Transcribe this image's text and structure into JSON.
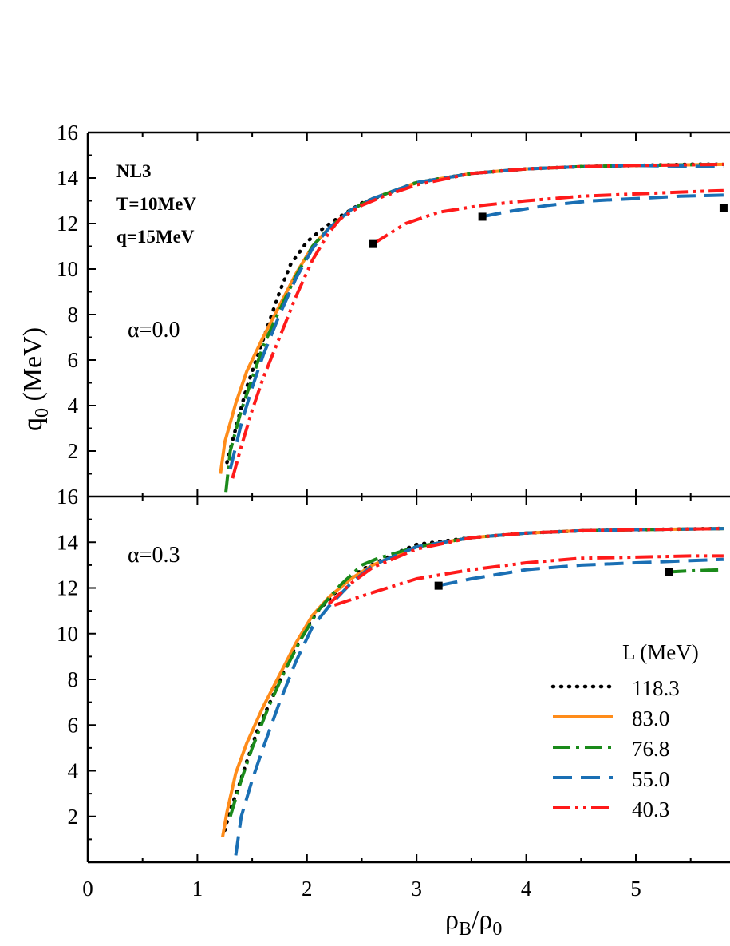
{
  "chart_data": {
    "type": "line",
    "xlabel_main": "ρ",
    "xlabel_sub1": "B",
    "xlabel_mid": "/ρ",
    "xlabel_sub2": "0",
    "ylabel_main": "q",
    "ylabel_sub": "0",
    "ylabel_unit": " (MeV)",
    "xlim": [
      0,
      5.8
    ],
    "x_ticks": [
      "0",
      "1",
      "2",
      "3",
      "4",
      "5"
    ],
    "annotations": [
      "NL3",
      "T=10MeV",
      "q=15MeV"
    ],
    "legend_title": "L (MeV)",
    "legend_position": "bottom-right",
    "series_styles": [
      {
        "name": "118.3",
        "color": "#000000",
        "dash": "dots"
      },
      {
        "name": "83.0",
        "color": "#ff8c1a",
        "dash": "solid"
      },
      {
        "name": "76.8",
        "color": "#1a8a1a",
        "dash": "dashdot"
      },
      {
        "name": "55.0",
        "color": "#1a6fb4",
        "dash": "dashed"
      },
      {
        "name": "40.3",
        "color": "#ff1a1a",
        "dash": "dashdotdot"
      }
    ],
    "panels": [
      {
        "label": "α=0.0",
        "ylim": [
          0,
          16
        ],
        "y_ticks": [
          "2",
          "4",
          "6",
          "8",
          "10",
          "12",
          "14",
          "16"
        ],
        "series": [
          {
            "name": "118.3",
            "points": [
              [
                1.27,
                1.5
              ],
              [
                1.35,
                3
              ],
              [
                1.45,
                4.8
              ],
              [
                1.55,
                6.2
              ],
              [
                1.65,
                7.6
              ],
              [
                1.75,
                9.0
              ],
              [
                1.85,
                10.2
              ],
              [
                2.0,
                11.2
              ],
              [
                2.15,
                11.8
              ],
              [
                2.3,
                12.3
              ],
              [
                2.5,
                12.9
              ],
              [
                3,
                13.8
              ],
              [
                3.5,
                14.2
              ],
              [
                4,
                14.4
              ],
              [
                4.5,
                14.5
              ],
              [
                5,
                14.55
              ],
              [
                5.5,
                14.6
              ],
              [
                5.8,
                14.6
              ]
            ]
          },
          {
            "name": "83.0",
            "points": [
              [
                1.21,
                1.0
              ],
              [
                1.25,
                2.4
              ],
              [
                1.35,
                4.1
              ],
              [
                1.45,
                5.5
              ],
              [
                1.6,
                7.0
              ],
              [
                1.75,
                8.4
              ],
              [
                1.9,
                9.8
              ],
              [
                2.05,
                11.0
              ],
              [
                2.2,
                11.8
              ],
              [
                2.4,
                12.6
              ],
              [
                2.6,
                13.1
              ],
              [
                3,
                13.8
              ],
              [
                3.5,
                14.2
              ],
              [
                4,
                14.4
              ],
              [
                4.5,
                14.5
              ],
              [
                5,
                14.55
              ],
              [
                5.8,
                14.6
              ]
            ]
          },
          {
            "name": "76.8",
            "points": [
              [
                1.26,
                0.2
              ],
              [
                1.3,
                2.0
              ],
              [
                1.4,
                3.8
              ],
              [
                1.5,
                5.2
              ],
              [
                1.6,
                6.6
              ],
              [
                1.75,
                8.2
              ],
              [
                1.9,
                9.7
              ],
              [
                2.05,
                11.0
              ],
              [
                2.2,
                11.8
              ],
              [
                2.4,
                12.6
              ],
              [
                2.6,
                13.1
              ],
              [
                3,
                13.8
              ],
              [
                3.5,
                14.2
              ],
              [
                4,
                14.4
              ],
              [
                4.5,
                14.5
              ],
              [
                5,
                14.55
              ],
              [
                5.8,
                14.6
              ]
            ]
          },
          {
            "name": "55.0",
            "points": [
              [
                1.3,
                1.2
              ],
              [
                1.4,
                3.2
              ],
              [
                1.5,
                4.8
              ],
              [
                1.6,
                6.2
              ],
              [
                1.75,
                8.0
              ],
              [
                1.9,
                9.6
              ],
              [
                2.05,
                10.9
              ],
              [
                2.2,
                11.8
              ],
              [
                2.4,
                12.6
              ],
              [
                2.6,
                13.1
              ],
              [
                3,
                13.8
              ],
              [
                3.5,
                14.2
              ],
              [
                4,
                14.4
              ],
              [
                4.5,
                14.5
              ],
              [
                5,
                14.55
              ],
              [
                5.8,
                14.5
              ]
            ]
          },
          {
            "name": "40.3",
            "points": [
              [
                1.32,
                0.8
              ],
              [
                1.4,
                2.2
              ],
              [
                1.5,
                3.8
              ],
              [
                1.6,
                5.2
              ],
              [
                1.75,
                7.0
              ],
              [
                1.9,
                8.8
              ],
              [
                2.05,
                10.4
              ],
              [
                2.2,
                11.6
              ],
              [
                2.3,
                12.2
              ],
              [
                2.5,
                12.8
              ],
              [
                2.7,
                13.2
              ],
              [
                3,
                13.7
              ],
              [
                3.5,
                14.2
              ],
              [
                4,
                14.4
              ],
              [
                4.5,
                14.5
              ],
              [
                5,
                14.55
              ],
              [
                5.8,
                14.6
              ]
            ]
          },
          {
            "name": "55.0",
            "points": [
              [
                3.6,
                12.3
              ],
              [
                3.8,
                12.5
              ],
              [
                4.2,
                12.8
              ],
              [
                4.6,
                13.0
              ],
              [
                5,
                13.1
              ],
              [
                5.4,
                13.2
              ],
              [
                5.8,
                13.25
              ]
            ]
          },
          {
            "name": "40.3",
            "points": [
              [
                2.6,
                11.1
              ],
              [
                2.9,
                12.0
              ],
              [
                3.2,
                12.5
              ],
              [
                3.6,
                12.8
              ],
              [
                4,
                13.0
              ],
              [
                4.5,
                13.2
              ],
              [
                5,
                13.3
              ],
              [
                5.5,
                13.4
              ],
              [
                5.8,
                13.45
              ]
            ]
          }
        ],
        "markers": [
          [
            2.6,
            11.1
          ],
          [
            3.6,
            12.3
          ],
          [
            5.8,
            12.7
          ]
        ]
      },
      {
        "label": "α=0.3",
        "ylim": [
          0,
          16
        ],
        "y_ticks": [
          "2",
          "4",
          "6",
          "8",
          "10",
          "12",
          "14",
          "16"
        ],
        "series": [
          {
            "name": "118.3",
            "points": [
              [
                1.25,
                1.4
              ],
              [
                1.3,
                2.3
              ],
              [
                1.37,
                3.2
              ],
              [
                1.45,
                4.4
              ],
              [
                1.55,
                5.8
              ],
              [
                1.7,
                7.4
              ],
              [
                1.85,
                9.0
              ],
              [
                2.0,
                10.3
              ],
              [
                2.1,
                11.0
              ],
              [
                2.3,
                12.0
              ],
              [
                2.5,
                12.8
              ],
              [
                2.8,
                13.5
              ],
              [
                3,
                13.9
              ],
              [
                3.5,
                14.2
              ],
              [
                4,
                14.4
              ],
              [
                4.5,
                14.5
              ],
              [
                5,
                14.55
              ],
              [
                5.8,
                14.6
              ]
            ]
          },
          {
            "name": "83.0",
            "points": [
              [
                1.23,
                1.1
              ],
              [
                1.27,
                2.2
              ],
              [
                1.35,
                3.9
              ],
              [
                1.45,
                5.2
              ],
              [
                1.6,
                6.8
              ],
              [
                1.75,
                8.2
              ],
              [
                1.9,
                9.6
              ],
              [
                2.05,
                10.8
              ],
              [
                2.2,
                11.6
              ],
              [
                2.4,
                12.4
              ],
              [
                2.6,
                13.0
              ],
              [
                3,
                13.8
              ],
              [
                3.5,
                14.2
              ],
              [
                4,
                14.4
              ],
              [
                4.5,
                14.5
              ],
              [
                5,
                14.55
              ],
              [
                5.8,
                14.6
              ]
            ]
          },
          {
            "name": "76.8",
            "points": [
              [
                1.3,
                2.0
              ],
              [
                1.4,
                3.6
              ],
              [
                1.5,
                5.0
              ],
              [
                1.65,
                6.8
              ],
              [
                1.8,
                8.4
              ],
              [
                1.95,
                9.8
              ],
              [
                2.1,
                11.0
              ],
              [
                2.3,
                12.1
              ],
              [
                2.5,
                13.0
              ],
              [
                2.65,
                13.3
              ],
              [
                3,
                13.8
              ],
              [
                3.5,
                14.2
              ],
              [
                4,
                14.4
              ],
              [
                4.5,
                14.5
              ],
              [
                5,
                14.55
              ],
              [
                5.8,
                14.6
              ]
            ]
          },
          {
            "name": "55.0",
            "points": [
              [
                1.35,
                0.3
              ],
              [
                1.4,
                2.0
              ],
              [
                1.5,
                3.6
              ],
              [
                1.6,
                5.0
              ],
              [
                1.75,
                7.0
              ],
              [
                1.9,
                8.8
              ],
              [
                2.05,
                10.3
              ],
              [
                2.2,
                11.2
              ],
              [
                2.4,
                12.2
              ],
              [
                2.6,
                13.0
              ],
              [
                3,
                13.8
              ],
              [
                3.5,
                14.2
              ],
              [
                4,
                14.4
              ],
              [
                4.5,
                14.5
              ],
              [
                5,
                14.55
              ],
              [
                5.8,
                14.6
              ]
            ]
          },
          {
            "name": "40.3",
            "points": [
              [
                2.2,
                11.3
              ],
              [
                2.4,
                12.2
              ],
              [
                2.6,
                12.9
              ],
              [
                2.8,
                13.3
              ],
              [
                3,
                13.7
              ],
              [
                3.5,
                14.2
              ],
              [
                4,
                14.4
              ],
              [
                4.5,
                14.5
              ],
              [
                5,
                14.55
              ],
              [
                5.8,
                14.6
              ]
            ]
          },
          {
            "name": "55.0",
            "points": [
              [
                3.2,
                12.1
              ],
              [
                3.5,
                12.4
              ],
              [
                4,
                12.8
              ],
              [
                4.5,
                13.0
              ],
              [
                5,
                13.1
              ],
              [
                5.5,
                13.2
              ],
              [
                5.8,
                13.25
              ]
            ]
          },
          {
            "name": "40.3",
            "points": [
              [
                2.25,
                11.25
              ],
              [
                2.6,
                11.8
              ],
              [
                3,
                12.4
              ],
              [
                3.5,
                12.8
              ],
              [
                4,
                13.1
              ],
              [
                4.5,
                13.3
              ],
              [
                5,
                13.35
              ],
              [
                5.5,
                13.4
              ],
              [
                5.8,
                13.4
              ]
            ]
          },
          {
            "name": "76.8",
            "points": [
              [
                5.3,
                12.7
              ],
              [
                5.5,
                12.75
              ],
              [
                5.8,
                12.8
              ]
            ]
          }
        ],
        "markers": [
          [
            3.2,
            12.1
          ],
          [
            5.3,
            12.7
          ]
        ]
      }
    ]
  }
}
